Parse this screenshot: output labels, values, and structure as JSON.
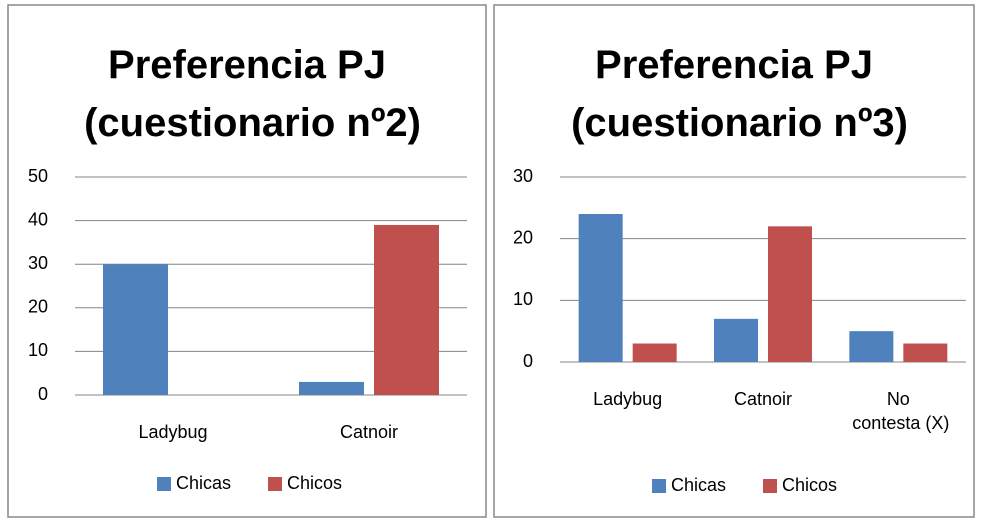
{
  "chart_data": [
    {
      "type": "bar",
      "title": "Preferencia PJ (cuestionario nº2)",
      "categories": [
        "Ladybug",
        "Catnoir"
      ],
      "series": [
        {
          "name": "Chicas",
          "color": "#4f81bd",
          "values": [
            30,
            3
          ]
        },
        {
          "name": "Chicos",
          "color": "#c0504d",
          "values": [
            0,
            39
          ]
        }
      ],
      "ylim": [
        0,
        50
      ],
      "yticks": [
        0,
        10,
        20,
        30,
        40,
        50
      ],
      "grid": true,
      "legend": "bottom"
    },
    {
      "type": "bar",
      "title": "Preferencia PJ (cuestionario nº3)",
      "categories": [
        "Ladybug",
        "Catnoir",
        "No contesta (X)"
      ],
      "series": [
        {
          "name": "Chicas",
          "color": "#4f81bd",
          "values": [
            24,
            7,
            5
          ]
        },
        {
          "name": "Chicos",
          "color": "#c0504d",
          "values": [
            3,
            22,
            3
          ]
        }
      ],
      "ylim": [
        0,
        30
      ],
      "yticks": [
        0,
        10,
        20,
        30
      ],
      "grid": true,
      "legend": "bottom"
    }
  ]
}
